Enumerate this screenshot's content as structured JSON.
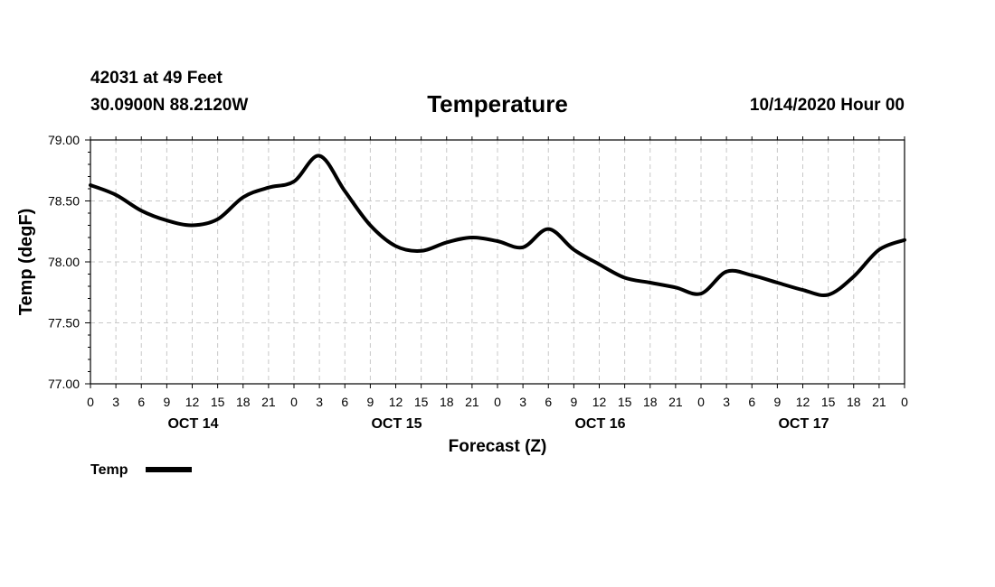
{
  "header": {
    "station": "42031 at 49 Feet",
    "coords": "30.0900N 88.2120W",
    "title": "Temperature",
    "run": "10/14/2020 Hour 00"
  },
  "chart_data": {
    "type": "line",
    "title": "Temperature",
    "xlabel": "Forecast (Z)",
    "ylabel": "Temp (degF)",
    "ylim": [
      77.0,
      79.0
    ],
    "yticks": [
      "77.00",
      "77.50",
      "78.00",
      "78.50",
      "79.00"
    ],
    "xlim_hours": [
      0,
      96
    ],
    "xtick_labels": [
      "0",
      "3",
      "6",
      "9",
      "12",
      "15",
      "18",
      "21",
      "0",
      "3",
      "6",
      "9",
      "12",
      "15",
      "18",
      "21",
      "0",
      "3",
      "6",
      "9",
      "12",
      "15",
      "18",
      "21",
      "0",
      "3",
      "6",
      "9",
      "12",
      "15",
      "18",
      "21",
      "0"
    ],
    "day_labels": [
      "OCT 14",
      "OCT 15",
      "OCT 16",
      "OCT 17"
    ],
    "grid": true,
    "legend": {
      "position": "bottom-left",
      "label": "Temp"
    },
    "series": [
      {
        "name": "Temp",
        "x_hours": [
          0,
          3,
          6,
          9,
          12,
          15,
          18,
          21,
          24,
          27,
          30,
          33,
          36,
          39,
          42,
          45,
          48,
          51,
          54,
          57,
          60,
          63,
          66,
          69,
          72,
          75,
          78,
          81,
          84,
          87,
          90,
          93,
          96
        ],
        "values": [
          78.63,
          78.55,
          78.42,
          78.34,
          78.3,
          78.35,
          78.53,
          78.61,
          78.66,
          78.87,
          78.58,
          78.3,
          78.13,
          78.09,
          78.16,
          78.2,
          78.17,
          78.12,
          78.27,
          78.1,
          77.98,
          77.87,
          77.83,
          77.79,
          77.74,
          77.92,
          77.89,
          77.83,
          77.77,
          77.73,
          77.88,
          78.1,
          78.18
        ]
      }
    ]
  }
}
